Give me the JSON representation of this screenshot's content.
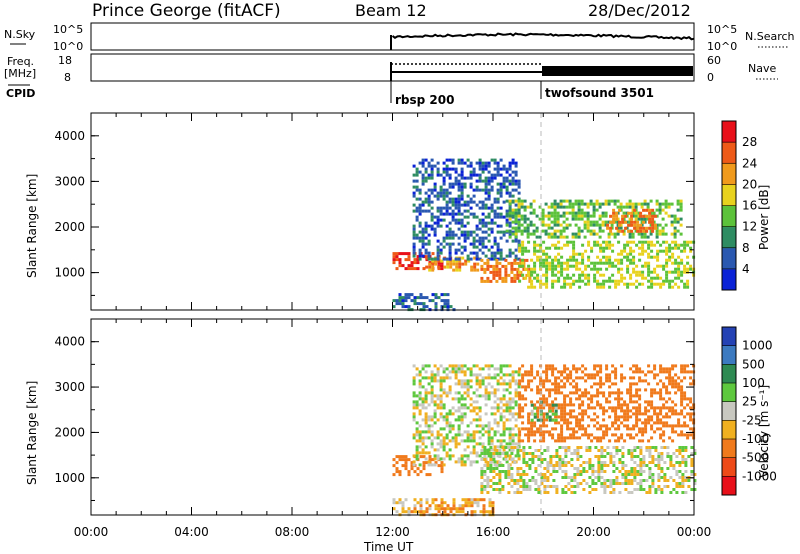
{
  "header": {
    "station": "Prince George (fitACF)",
    "beam": "Beam 12",
    "date": "28/Dec/2012"
  },
  "nsky_panel": {
    "left_label": "N.Sky",
    "left_ticks": [
      "10^5",
      "10^0"
    ],
    "right_ticks": [
      "10^5",
      "10^0"
    ],
    "right_label": "N.Search",
    "log_scale": true,
    "start_time": "12:00"
  },
  "freq_panel": {
    "left_label_1": "Freq.",
    "left_label_2": "[MHz]",
    "left_ticks": [
      "18",
      "8"
    ],
    "right_ticks": [
      "60",
      "0"
    ],
    "right_label": "Nave",
    "start_time": "12:00",
    "nave_change_time": "18:00"
  },
  "cpid": {
    "label": "CPID",
    "programs": [
      {
        "name": "rbsp 200",
        "start": "12:00"
      },
      {
        "name": "twofsound 3501",
        "start": "18:00"
      }
    ]
  },
  "time_axis": {
    "label": "Time UT",
    "ticks": [
      "00:00",
      "04:00",
      "08:00",
      "12:00",
      "16:00",
      "20:00",
      "00:00"
    ],
    "range_hours": [
      0,
      24
    ]
  },
  "power_panel": {
    "ylabel": "Slant Range [km]",
    "yticks": [
      "1000",
      "2000",
      "3000",
      "4000"
    ],
    "cbar_label": "Power [dB]",
    "cbar_ticks": [
      "4",
      "8",
      "12",
      "16",
      "20",
      "24",
      "28"
    ],
    "colors": [
      "#0a22d6",
      "#2a58b0",
      "#2e8c62",
      "#5cc23a",
      "#e8d21e",
      "#f09a1c",
      "#ee5a18",
      "#e8101a"
    ]
  },
  "velocity_panel": {
    "ylabel": "Slant Range [km]",
    "yticks": [
      "1000",
      "2000",
      "3000",
      "4000"
    ],
    "cbar_label": "Velocity [m s⁻¹]",
    "cbar_ticks": [
      "1000",
      "500",
      "100",
      "25",
      "-25",
      "-100",
      "-500",
      "-1000"
    ],
    "colors": [
      "#2442b4",
      "#3c7ac0",
      "#2e8a52",
      "#5ec83e",
      "#c8c8c0",
      "#f0b020",
      "#f07a1c",
      "#ee4a18",
      "#e8101a"
    ]
  },
  "chart_data": [
    {
      "type": "heatmap",
      "title": "Power",
      "xlabel": "Time UT",
      "ylabel": "Slant Range [km]",
      "x_range_hours": [
        0,
        24
      ],
      "ylim_km": [
        180,
        4500
      ],
      "colorbar_label": "Power [dB]",
      "colorbar_range": [
        0,
        32
      ],
      "regions": [
        {
          "t_start": 12.0,
          "t_end": 14.0,
          "range_start": 1100,
          "range_end": 1450,
          "value_db": 28
        },
        {
          "t_start": 13.3,
          "t_end": 15.5,
          "range_start": 1050,
          "range_end": 1350,
          "value_db": 22
        },
        {
          "t_start": 12.8,
          "t_end": 17.0,
          "range_start": 1300,
          "range_end": 3500,
          "value_db": 6
        },
        {
          "t_start": 15.5,
          "t_end": 17.5,
          "range_start": 800,
          "range_end": 1300,
          "value_db": 24
        },
        {
          "t_start": 17.0,
          "t_end": 24.0,
          "range_start": 700,
          "range_end": 1700,
          "value_db": 16
        },
        {
          "t_start": 16.5,
          "t_end": 23.5,
          "range_start": 1800,
          "range_end": 2600,
          "value_db": 14
        },
        {
          "t_start": 20.5,
          "t_end": 22.5,
          "range_start": 1900,
          "range_end": 2400,
          "value_db": 24
        },
        {
          "t_start": 12.0,
          "t_end": 14.5,
          "range_start": 200,
          "range_end": 550,
          "value_db": 6
        }
      ]
    },
    {
      "type": "heatmap",
      "title": "Velocity",
      "xlabel": "Time UT",
      "ylabel": "Slant Range [km]",
      "x_range_hours": [
        0,
        24
      ],
      "ylim_km": [
        180,
        4500
      ],
      "colorbar_label": "Velocity [m s⁻¹]",
      "colorbar_levels": [
        1000,
        500,
        100,
        25,
        -25,
        -100,
        -500,
        -1000
      ],
      "regions": [
        {
          "t_start": 12.0,
          "t_end": 14.0,
          "range_start": 1100,
          "range_end": 1500,
          "value_ms": -200
        },
        {
          "t_start": 12.8,
          "t_end": 17.0,
          "range_start": 1300,
          "range_end": 3500,
          "value_ms": 0
        },
        {
          "t_start": 15.5,
          "t_end": 24.0,
          "range_start": 700,
          "range_end": 1700,
          "value_ms": 0
        },
        {
          "t_start": 17.0,
          "t_end": 24.0,
          "range_start": 1800,
          "range_end": 3500,
          "value_ms": -300
        },
        {
          "t_start": 17.5,
          "t_end": 18.5,
          "range_start": 2300,
          "range_end": 2700,
          "value_ms": 80
        },
        {
          "t_start": 12.0,
          "t_end": 16.0,
          "range_start": 200,
          "range_end": 550,
          "value_ms": -80
        }
      ]
    }
  ]
}
